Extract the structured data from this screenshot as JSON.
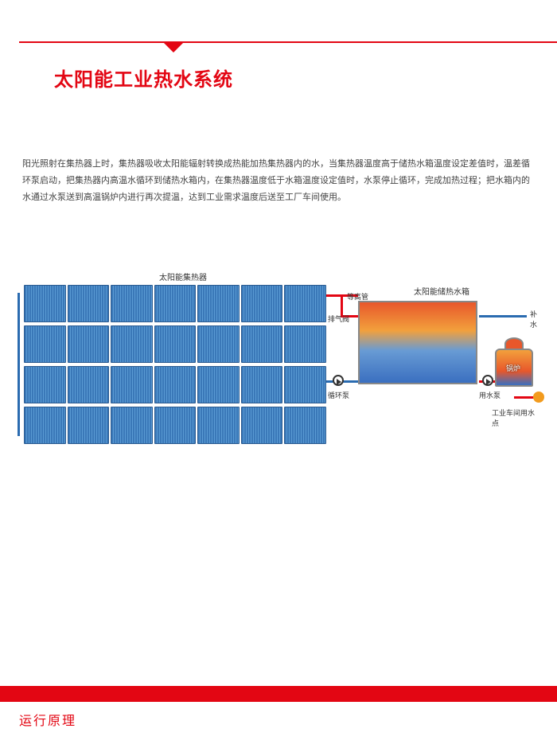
{
  "colors": {
    "accent": "#e30613",
    "text": "#444444",
    "pipe_hot": "#e30613",
    "pipe_cold": "#2a6bb0",
    "collector_dark": "#3a78b8",
    "collector_light": "#5a9bd4",
    "tank_border": "#888888",
    "tank_gradient": [
      "#e8572b",
      "#f2a03c",
      "#689bd4",
      "#3a6fc0"
    ],
    "tap": "#f29b1e",
    "background": "#ffffff"
  },
  "header": {
    "title": "太阳能工业热水系统",
    "title_fontsize": 24
  },
  "description": "阳光照射在集热器上时，集热器吸收太阳能辐射转换成热能加热集热器内的水，当集热器温度高于储热水箱温度设定差值时，温差循环泵启动，把集热器内高温水循环到储热水箱内，在集热器温度低于水箱温度设定值时，水泵停止循环，完成加热过程；把水箱内的水通过水泵送到高温锅炉内进行再次提温，达到工业需求温度后送至工厂车间使用。",
  "diagram": {
    "type": "flowchart",
    "collector": {
      "label": "太阳能集热器",
      "rows": 4,
      "cols": 7
    },
    "tank": {
      "label": "太阳能储热水箱"
    },
    "boiler": {
      "label": "锅炉"
    },
    "labels": {
      "equalizer": "等高管",
      "exhaust": "排气阀",
      "circ_pump": "循环泵",
      "supply": "补水",
      "use_pump": "用水泵",
      "workshop": "工业车间用水点"
    }
  },
  "footer": {
    "section_title": "运行原理"
  }
}
